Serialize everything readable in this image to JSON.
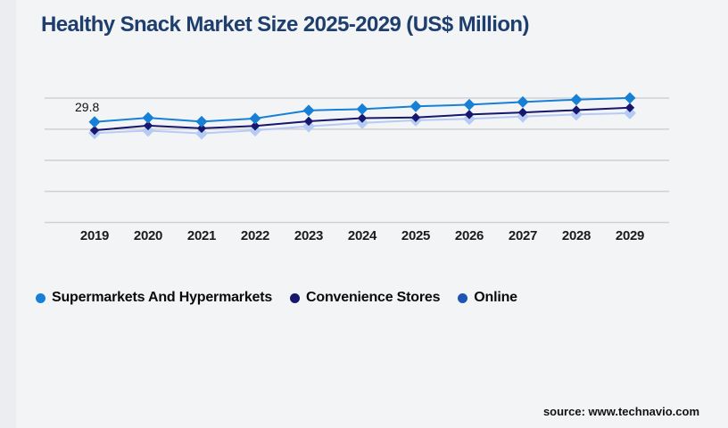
{
  "title": "Healthy Snack Market Size 2025-2029 (US$ Million)",
  "source": "source: www.technavio.com",
  "chart_data": {
    "type": "line",
    "title": "Healthy Snack Market Size 2025-2029 (US$ Million)",
    "xlabel": "",
    "ylabel": "",
    "x": [
      "2019",
      "2020",
      "2021",
      "2022",
      "2023",
      "2024",
      "2025",
      "2026",
      "2027",
      "2028",
      "2029"
    ],
    "series": [
      {
        "name": "Supermarkets And Hypermarkets",
        "color": "#1680d6",
        "legend_color": "#1680d6",
        "marker": "diamond",
        "values": [
          29.8,
          31.0,
          29.9,
          30.8,
          33.2,
          33.6,
          34.4,
          34.9,
          35.7,
          36.4,
          36.9
        ]
      },
      {
        "name": "Convenience Stores",
        "color": "#17176d",
        "legend_color": "#17176d",
        "marker": "diamond",
        "values": [
          27.3,
          28.7,
          27.9,
          28.6,
          30.0,
          30.9,
          31.1,
          32.0,
          32.6,
          33.3,
          34.0
        ]
      },
      {
        "name": "Online",
        "color": "#b6cbf4",
        "legend_color": "#1c55b4",
        "marker": "diamond",
        "values": [
          26.5,
          27.2,
          26.4,
          27.3,
          28.5,
          29.5,
          30.3,
          30.7,
          31.4,
          32.0,
          32.4
        ]
      }
    ],
    "annotations": [
      {
        "text": "29.8",
        "series": "Supermarkets And Hypermarkets",
        "x": "2019"
      }
    ],
    "ylim": [
      0,
      40
    ],
    "y_axis_labels_visible": false,
    "grid": "horizontal",
    "gridline_count": 5,
    "legend_position": "bottom"
  }
}
